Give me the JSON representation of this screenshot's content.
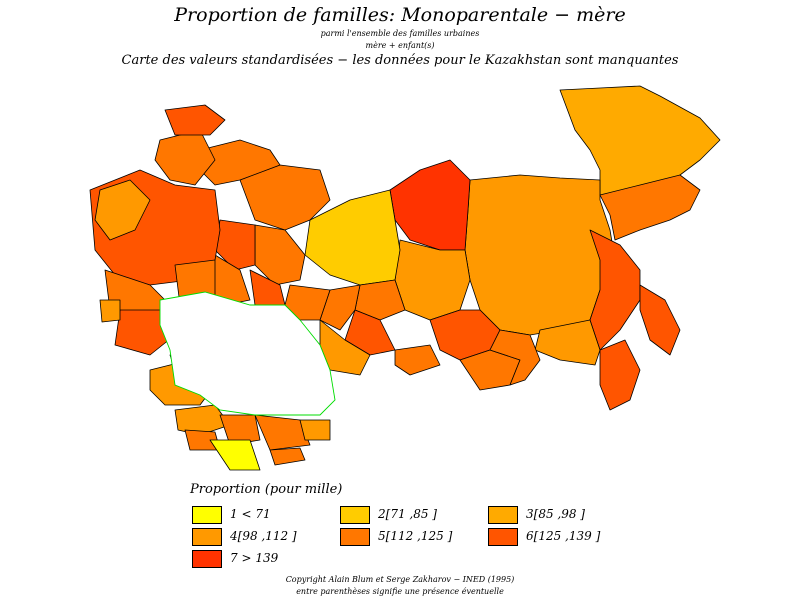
{
  "title": "Proportion  de  familles:  Monoparentale  −  mère",
  "subtitle1": "parmi  l'ensemble  des  familles  urbaines",
  "subtitle2": "mère  +  enfant(s)",
  "subtitle3": "Carte  des  valeurs  standardisées  −  les  données  pour  le  Kazakhstan  sont  manquantes",
  "legend": {
    "title": "Proportion  (pour  mille)",
    "items": [
      {
        "label": "1  <  71",
        "color": "#ffff00"
      },
      {
        "label": "2[71 ,85  ]",
        "color": "#ffcc00"
      },
      {
        "label": "3[85 ,98  ]",
        "color": "#ffaa00"
      },
      {
        "label": "4[98 ,112  ]",
        "color": "#ff9900"
      },
      {
        "label": "5[112 ,125  ]",
        "color": "#ff7700"
      },
      {
        "label": "6[125 ,139  ]",
        "color": "#ff5500"
      },
      {
        "label": "7  >  139",
        "color": "#ff3300"
      }
    ]
  },
  "copyright": "Copyright  Alain  Blum  et  Serge  Zakharov  −  INED  (1995)",
  "note": "entre  parenthèses  signifie  une  présence  éventuelle",
  "colors": {
    "missing_fill": "#ffffff",
    "missing_border": "#00dd00",
    "region_border": "#000000"
  }
}
